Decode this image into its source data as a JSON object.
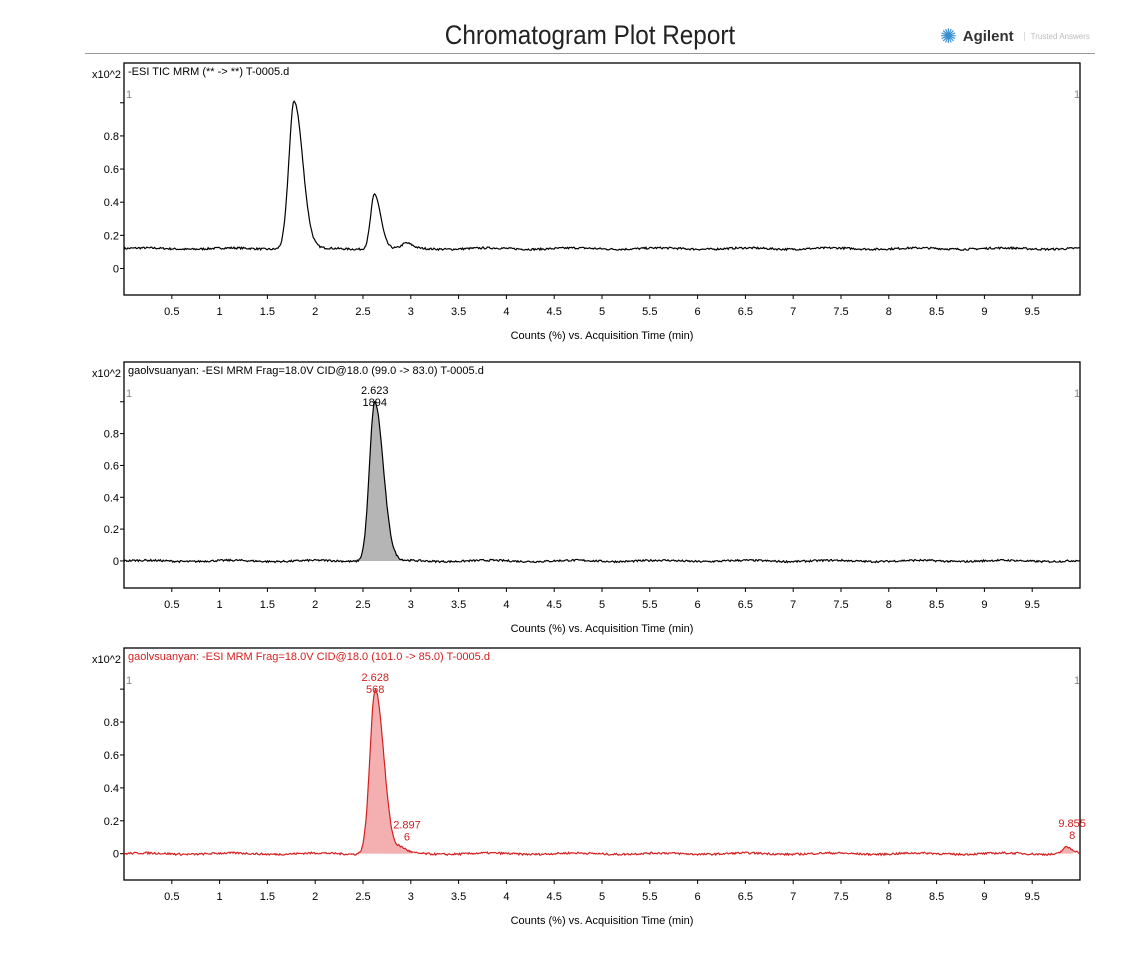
{
  "header": {
    "title": "Chromatogram Plot Report",
    "logo": "Agilent",
    "tagline": "Trusted Answers",
    "logo_icon": "agilent-spark-icon"
  },
  "chart_data": [
    {
      "type": "line",
      "title": "-ESI TIC MRM (** -> **) T-0005.d",
      "color": "#000000",
      "fill": null,
      "y_multiplier": "x10^2",
      "xlabel": "Counts (%) vs. Acquisition Time (min)",
      "xlim": [
        0,
        10
      ],
      "ylim": [
        -0.16,
        1.24
      ],
      "xticks": [
        "0.5",
        "1",
        "1.5",
        "2",
        "2.5",
        "3",
        "3.5",
        "4",
        "4.5",
        "5",
        "5.5",
        "6",
        "6.5",
        "7",
        "7.5",
        "8",
        "8.5",
        "9",
        "9.5"
      ],
      "yticks": [
        "0",
        "0.2",
        "0.4",
        "0.6",
        "0.8",
        "1"
      ],
      "baseline": 0.12,
      "peaks": [
        {
          "rt": 1.78,
          "height": 0.89
        },
        {
          "rt": 2.62,
          "height": 0.33
        },
        {
          "rt": 2.95,
          "height": 0.03
        }
      ],
      "peak_labels": []
    },
    {
      "type": "area",
      "title": "gaolvsuanyan: -ESI MRM Frag=18.0V CID@18.0 (99.0 -> 83.0) T-0005.d",
      "color": "#000000",
      "fill": "#b5b5b5",
      "y_multiplier": "x10^2",
      "xlabel": "Counts (%) vs. Acquisition Time (min)",
      "xlim": [
        0,
        10
      ],
      "ylim": [
        -0.17,
        1.25
      ],
      "xticks": [
        "0.5",
        "1",
        "1.5",
        "2",
        "2.5",
        "3",
        "3.5",
        "4",
        "4.5",
        "5",
        "5.5",
        "6",
        "6.5",
        "7",
        "7.5",
        "8",
        "8.5",
        "9",
        "9.5"
      ],
      "yticks": [
        "0",
        "0.2",
        "0.4",
        "0.6",
        "0.8",
        "1"
      ],
      "baseline": 0,
      "peaks": [
        {
          "rt": 2.623,
          "height": 1.0
        }
      ],
      "peak_labels": [
        {
          "rt": "2.623",
          "value": "1894"
        }
      ]
    },
    {
      "type": "area",
      "title": "gaolvsuanyan: -ESI MRM Frag=18.0V CID@18.0 (101.0 -> 85.0) T-0005.d",
      "color": "#d42020",
      "fill": "#f4b0b0",
      "y_multiplier": "x10^2",
      "xlabel": "Counts (%) vs. Acquisition Time (min)",
      "xlim": [
        0,
        10
      ],
      "ylim": [
        -0.16,
        1.25
      ],
      "xticks": [
        "0.5",
        "1",
        "1.5",
        "2",
        "2.5",
        "3",
        "3.5",
        "4",
        "4.5",
        "5",
        "5.5",
        "6",
        "6.5",
        "7",
        "7.5",
        "8",
        "8.5",
        "9",
        "9.5"
      ],
      "yticks": [
        "0",
        "0.2",
        "0.4",
        "0.6",
        "0.8",
        "1"
      ],
      "baseline": 0,
      "peaks": [
        {
          "rt": 2.628,
          "height": 1.0
        },
        {
          "rt": 2.897,
          "height": 0.03
        },
        {
          "rt": 9.855,
          "height": 0.04
        }
      ],
      "peak_labels": [
        {
          "rt": "2.628",
          "value": "568"
        },
        {
          "rt": "2.897",
          "value": "6"
        },
        {
          "rt": "9.855",
          "value": "8"
        }
      ]
    }
  ]
}
